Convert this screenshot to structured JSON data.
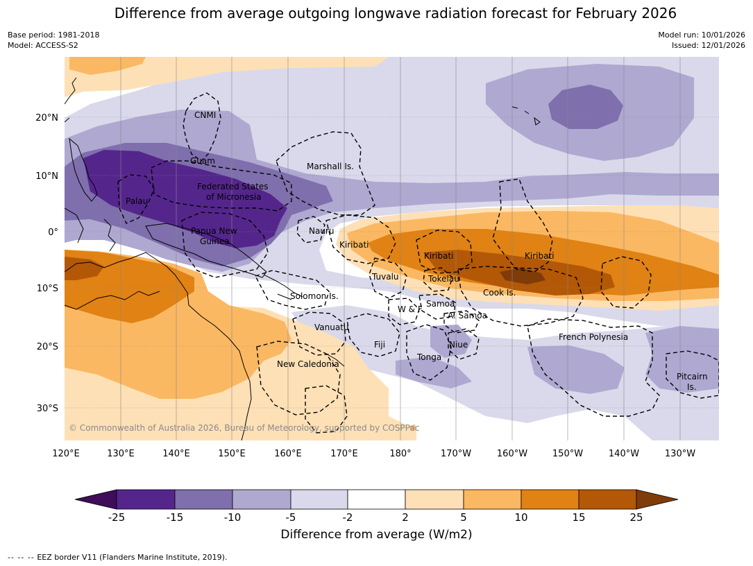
{
  "title": "Difference from average outgoing longwave radiation forecast for February 2026",
  "meta": {
    "base_period": "Base period: 1981-2018",
    "model": "Model: ACCESS-S2",
    "model_run": "Model run: 10/01/2026",
    "issued": "Issued: 12/01/2026"
  },
  "map": {
    "lon_labels": [
      "120°E",
      "130°E",
      "140°E",
      "150°E",
      "160°E",
      "170°E",
      "180°",
      "170°W",
      "160°W",
      "150°W",
      "140°W",
      "130°W"
    ],
    "lat_labels": [
      "20°N",
      "10°N",
      "0°",
      "10°S",
      "20°S",
      "30°S"
    ],
    "copyright": "© Commonwealth of Australia 2026, Bureau of Meteorology, supported by COSPPac",
    "places": {
      "cnmi": "CNMI",
      "guam": "Guam",
      "marshall": "Marshall Is.",
      "fsm_1": "Federated States",
      "fsm_2": "of Micronesia",
      "palau": "Palau",
      "png_1": "Papua New",
      "png_2": "Guinea",
      "nauru": "Nauru",
      "kiribati_w": "Kiribati",
      "kiribati_c": "Kiribati",
      "kiribati_e": "Kiribati",
      "tuvalu": "Tuvalu",
      "tokelau": "Tokelau",
      "cook": "Cook Is.",
      "solomon": "Solomon Is.",
      "wf": "W & F",
      "samoa": "Samoa",
      "asamoa": "A. Samoa",
      "vanuatu": "Vanuatu",
      "fiji": "Fiji",
      "niue": "Niue",
      "tonga": "Tonga",
      "newcal": "New Caledonia",
      "frpoly": "French Polynesia",
      "pitcairn_1": "Pitcairn",
      "pitcairn_2": "Is."
    }
  },
  "colorbar": {
    "labels": [
      "-25",
      "-15",
      "-10",
      "-5",
      "-2",
      "2",
      "5",
      "10",
      "15",
      "25"
    ],
    "colors": [
      "#3f0d5a",
      "#54268c",
      "#7f6fad",
      "#afa8d1",
      "#d9d9eb",
      "#ffffff",
      "#fee0b6",
      "#fbb862",
      "#e08214",
      "#b35806",
      "#7f3b08"
    ],
    "title": "Difference from average (W/m2)"
  },
  "eez_legend": {
    "dashes": "--  --  --",
    "text": "EEZ border V11 (Flanders Marine Institute, 2019)."
  }
}
